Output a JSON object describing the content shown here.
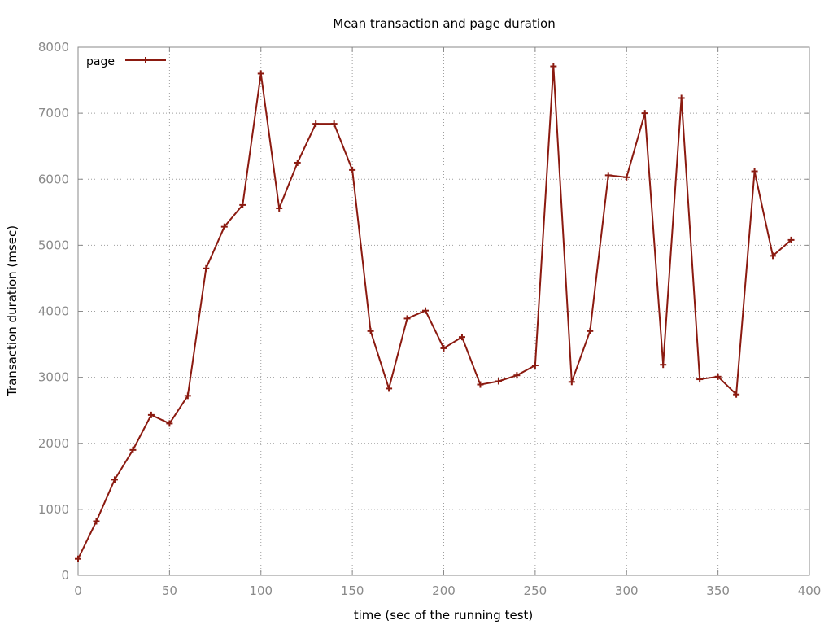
{
  "chart_data": {
    "type": "line",
    "title": "Mean transaction and page duration",
    "xlabel": "time (sec of the running test)",
    "ylabel": "Transaction duration (msec)",
    "xlim": [
      0,
      400
    ],
    "ylim": [
      0,
      8000
    ],
    "xticks": [
      0,
      50,
      100,
      150,
      200,
      250,
      300,
      350,
      400
    ],
    "yticks": [
      0,
      1000,
      2000,
      3000,
      4000,
      5000,
      6000,
      7000,
      8000
    ],
    "grid": true,
    "legend_position": "top-left",
    "series": [
      {
        "name": "page",
        "color": "#8b1a10",
        "marker": "plus",
        "points": [
          [
            0,
            250
          ],
          [
            10,
            820
          ],
          [
            20,
            1450
          ],
          [
            30,
            1900
          ],
          [
            40,
            2430
          ],
          [
            50,
            2300
          ],
          [
            60,
            2720
          ],
          [
            70,
            4650
          ],
          [
            80,
            5280
          ],
          [
            90,
            5610
          ],
          [
            100,
            7600
          ],
          [
            110,
            5560
          ],
          [
            120,
            6250
          ],
          [
            130,
            6840
          ],
          [
            140,
            6840
          ],
          [
            150,
            6140
          ],
          [
            160,
            3700
          ],
          [
            170,
            2830
          ],
          [
            180,
            3890
          ],
          [
            190,
            4010
          ],
          [
            200,
            3440
          ],
          [
            210,
            3610
          ],
          [
            220,
            2890
          ],
          [
            230,
            2940
          ],
          [
            240,
            3030
          ],
          [
            250,
            3180
          ],
          [
            260,
            7710
          ],
          [
            270,
            2930
          ],
          [
            280,
            3700
          ],
          [
            290,
            6060
          ],
          [
            300,
            6030
          ],
          [
            310,
            7000
          ],
          [
            320,
            3190
          ],
          [
            330,
            7230
          ],
          [
            340,
            2970
          ],
          [
            350,
            3010
          ],
          [
            360,
            2740
          ],
          [
            370,
            6120
          ],
          [
            380,
            4840
          ],
          [
            390,
            5080
          ]
        ]
      }
    ]
  }
}
